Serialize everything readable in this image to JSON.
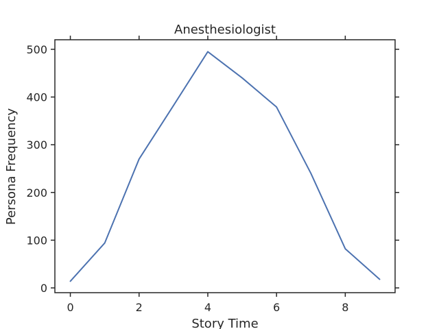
{
  "chart_data": {
    "type": "line",
    "title": "Anesthesiologist",
    "xlabel": "Story Time",
    "ylabel": "Persona Frequency",
    "x": [
      0,
      1,
      2,
      3,
      4,
      5,
      6,
      7,
      8,
      9
    ],
    "series": [
      {
        "values": [
          14,
          94,
          270,
          382,
          495,
          440,
          379,
          240,
          82,
          18
        ]
      }
    ],
    "xlim": [
      -0.45,
      9.45
    ],
    "ylim": [
      -10,
      520
    ],
    "xticks": [
      0,
      2,
      4,
      6,
      8
    ],
    "yticks": [
      0,
      100,
      200,
      300,
      400,
      500
    ],
    "grid": false,
    "colors": {
      "line": "#4c72b0",
      "axes": "#262626"
    }
  }
}
